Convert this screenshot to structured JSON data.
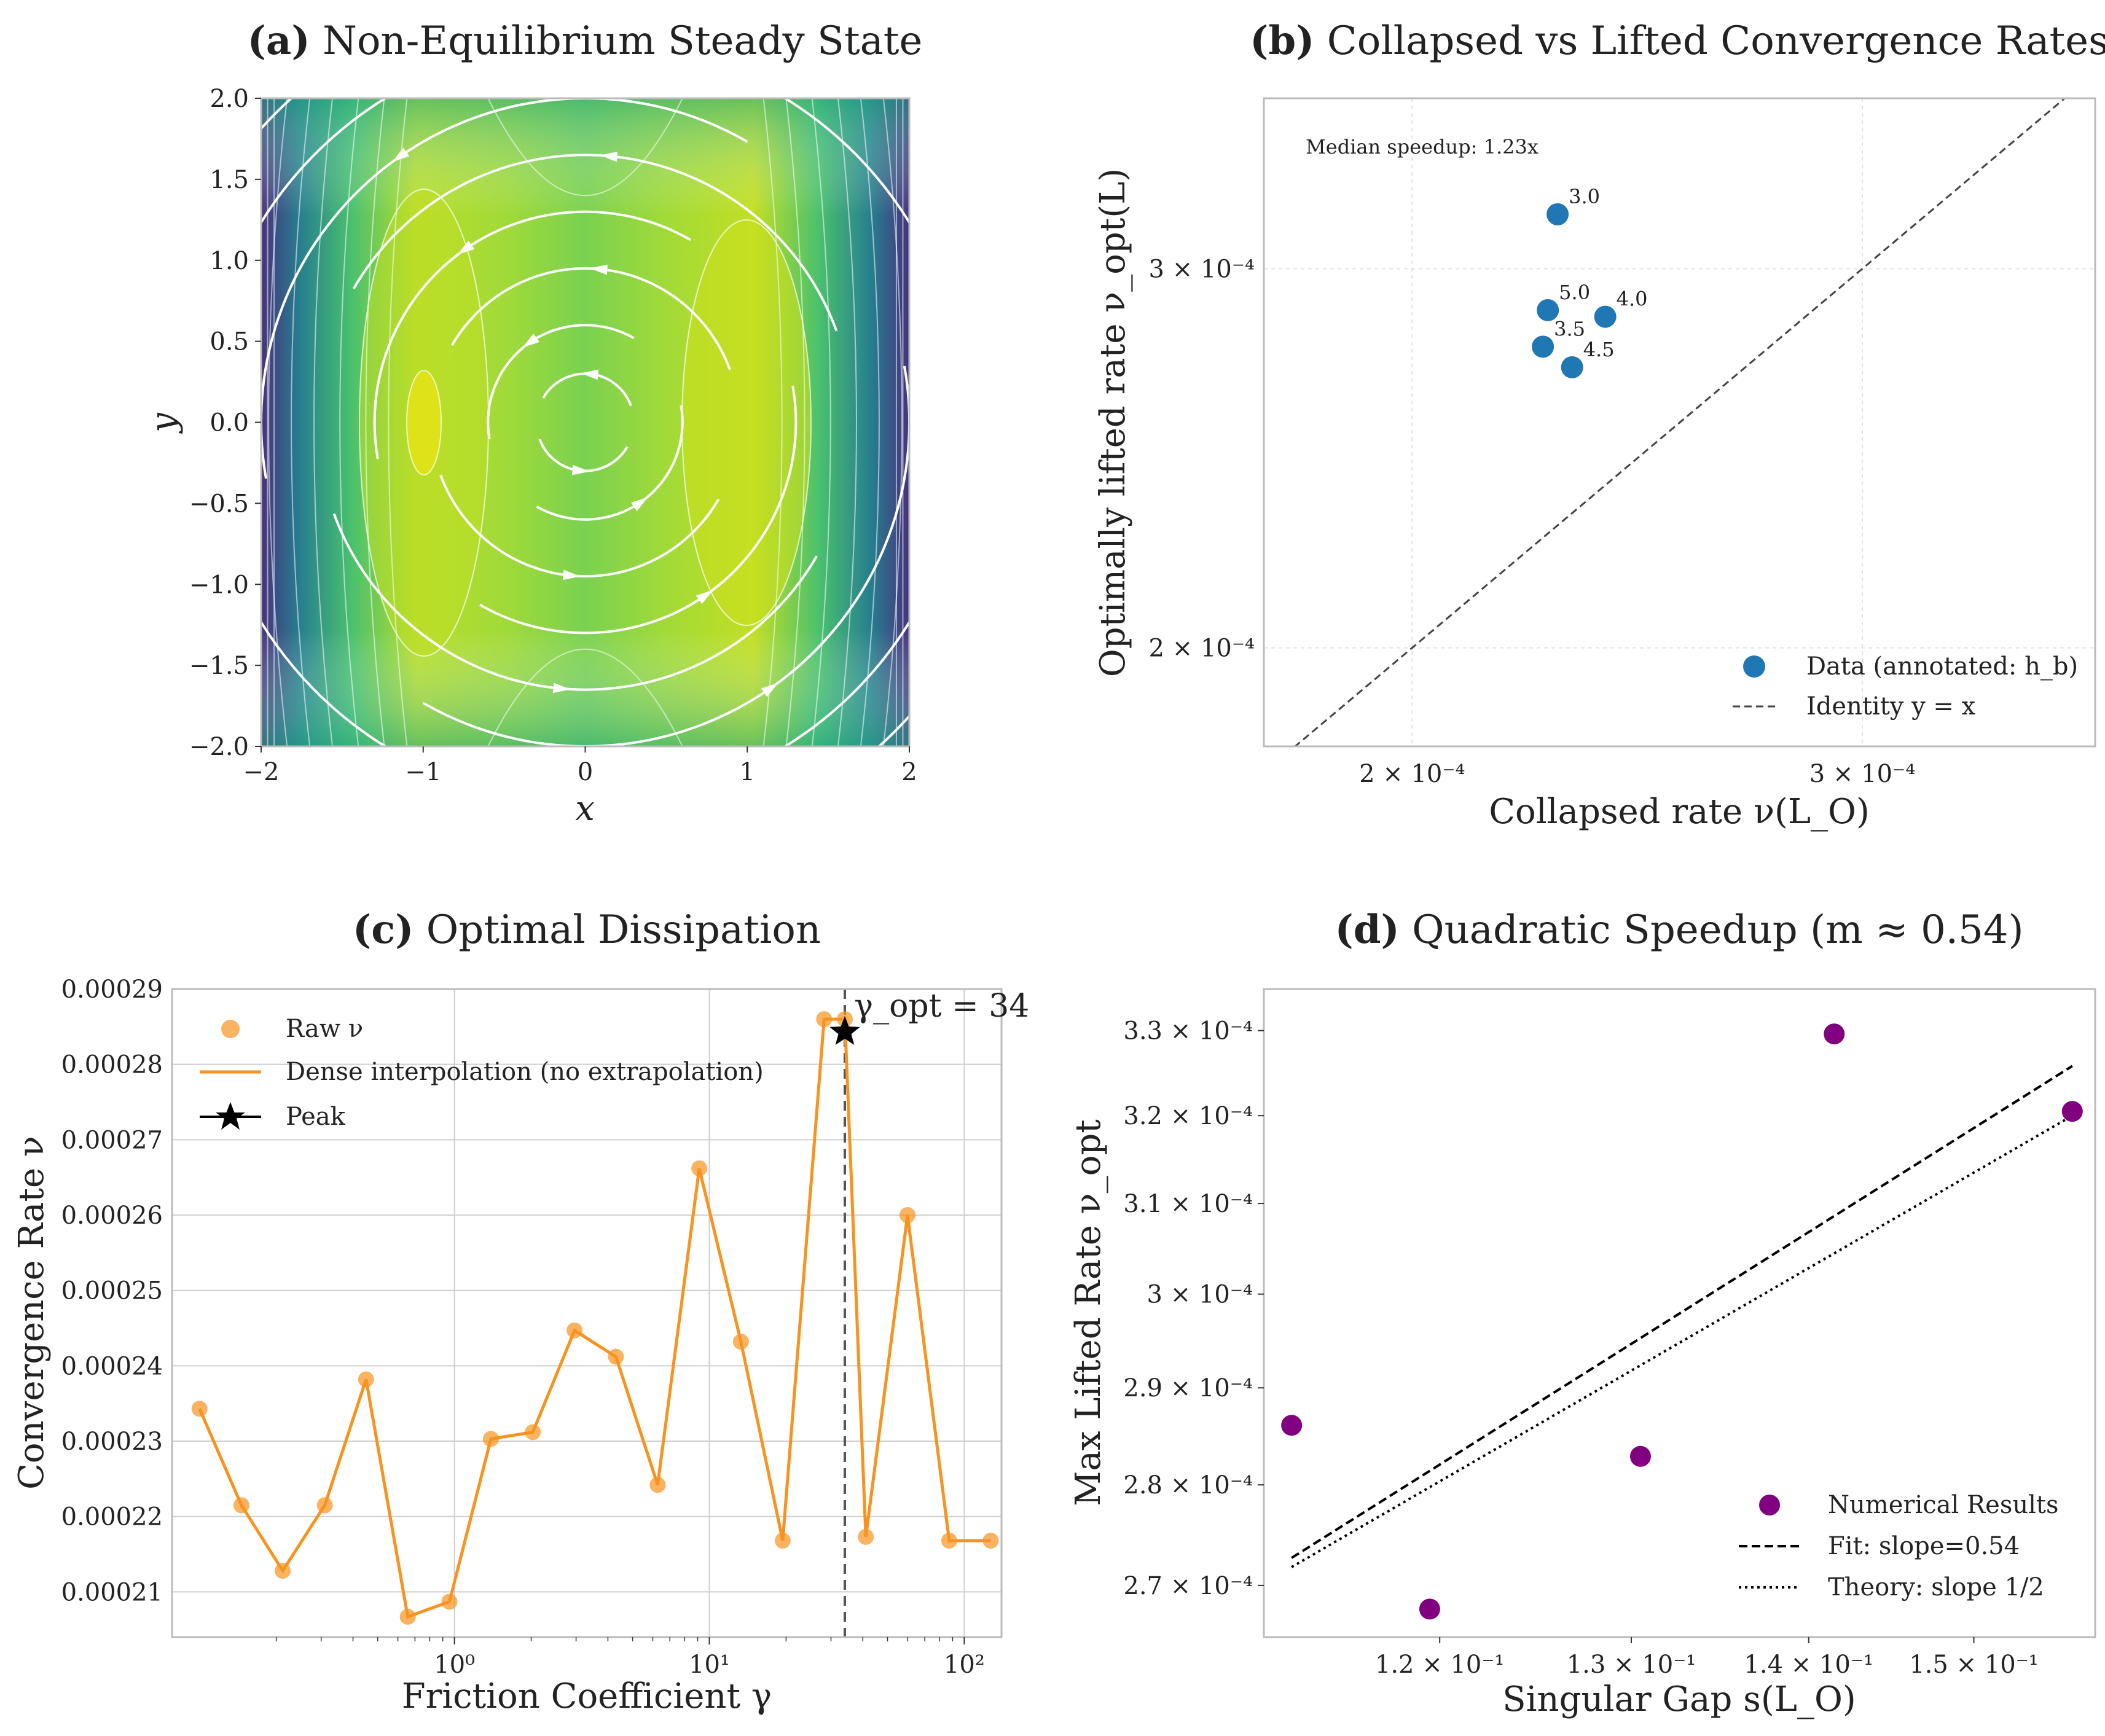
{
  "panels": {
    "a": {
      "title_bold": "(a)",
      "title": "Non-Equilibrium Steady State",
      "xlabel": "x",
      "ylabel": "y",
      "xticks": [
        "−2",
        "−1",
        "0",
        "1",
        "2"
      ],
      "yticks": [
        "−2.0",
        "−1.5",
        "−1.0",
        "−0.5",
        "0.0",
        "0.5",
        "1.0",
        "1.5",
        "2.0"
      ]
    },
    "b": {
      "title_bold": "(b)",
      "title": "Collapsed vs Lifted Convergence Rates",
      "xlabel": "Collapsed rate ν(L_O)",
      "ylabel": "Optimally lifted rate ν_opt(L)",
      "annotation": "Median speedup: 1.23x",
      "xticks": [
        "2 × 10⁻⁴",
        "3 × 10⁻⁴"
      ],
      "yticks": [
        "2 × 10⁻⁴",
        "3 × 10⁻⁴"
      ],
      "legend": [
        "Data (annotated: h_b)",
        "Identity y = x"
      ]
    },
    "c": {
      "title_bold": "(c)",
      "title": "Optimal Dissipation",
      "xlabel": "Friction Coefficient γ",
      "ylabel": "Convergence Rate ν",
      "annotation": "γ_opt = 34",
      "yticks": [
        "0.00021",
        "0.00022",
        "0.00023",
        "0.00024",
        "0.00025",
        "0.00026",
        "0.00027",
        "0.00028",
        "0.00029"
      ],
      "xticks": [
        "10⁰",
        "10¹",
        "10²"
      ],
      "legend": [
        "Raw ν",
        "Dense interpolation (no extrapolation)",
        "Peak"
      ]
    },
    "d": {
      "title_bold": "(d)",
      "title": "Quadratic Speedup (m ≈ 0.54)",
      "xlabel": "Singular Gap s(L_O)",
      "ylabel": "Max Lifted Rate ν_opt",
      "xticks": [
        "1.2 × 10⁻¹",
        "1.3 × 10⁻¹",
        "1.4 × 10⁻¹",
        "1.5 × 10⁻¹"
      ],
      "yticks": [
        "2.7 × 10⁻⁴",
        "2.8 × 10⁻⁴",
        "2.9 × 10⁻⁴",
        "3 × 10⁻⁴",
        "3.1 × 10⁻⁴",
        "3.2 × 10⁻⁴",
        "3.3 × 10⁻⁴"
      ],
      "legend": [
        "Numerical Results",
        "Fit: slope=0.54",
        "Theory: slope 1/2"
      ]
    }
  },
  "colors": {
    "blue": "#1f77b4",
    "orange": "#f7931e",
    "purple": "#800080",
    "grid": "#cfcfcf"
  },
  "chart_data": [
    {
      "type": "heatmap",
      "panel": "a",
      "xlim": [
        -2,
        2
      ],
      "ylim": [
        -2,
        2
      ],
      "colormap": "viridis",
      "streamlines": "rotational"
    },
    {
      "type": "scatter",
      "panel": "b",
      "scale": "log",
      "xlim": [
        0.000175,
        0.00037
      ],
      "ylim": [
        0.00018,
        0.00036
      ],
      "points": [
        {
          "x": 0.000228,
          "y": 0.000318,
          "label": "3.0"
        },
        {
          "x": 0.000226,
          "y": 0.000287,
          "label": "5.0"
        },
        {
          "x": 0.000238,
          "y": 0.000285,
          "label": "4.0"
        },
        {
          "x": 0.000225,
          "y": 0.000276,
          "label": "3.5"
        },
        {
          "x": 0.000231,
          "y": 0.00027,
          "label": "4.5"
        }
      ],
      "identity_line": true
    },
    {
      "type": "line",
      "panel": "c",
      "xscale": "log",
      "ylim": [
        0.000204,
        0.00029
      ],
      "gamma": [
        0.1,
        0.146,
        0.212,
        0.31,
        0.45,
        0.656,
        0.956,
        1.39,
        2.03,
        2.96,
        4.3,
        6.27,
        9.13,
        13.3,
        19.4,
        28.2,
        34,
        41.1,
        59.9,
        87.3,
        127
      ],
      "values": [
        0.0002343,
        0.0002215,
        0.0002128,
        0.0002215,
        0.0002382,
        0.0002067,
        0.0002087,
        0.0002303,
        0.0002312,
        0.0002447,
        0.0002412,
        0.0002242,
        0.0002662,
        0.0002432,
        0.0002168,
        0.000286,
        0.000286,
        0.0002173,
        0.00026,
        0.0002168,
        0.0002168
      ],
      "peak": {
        "x": 34,
        "y": 0.0002843
      }
    },
    {
      "type": "scatter",
      "panel": "d",
      "scale": "log",
      "xlim": [
        0.1115,
        0.1578
      ],
      "ylim": [
        0.000265,
        0.000335
      ],
      "points": [
        {
          "x": 0.1128,
          "y": 0.0002861
        },
        {
          "x": 0.1195,
          "y": 0.0002677
        },
        {
          "x": 0.1305,
          "y": 0.0002829
        },
        {
          "x": 0.1415,
          "y": 0.0003296
        },
        {
          "x": 0.1563,
          "y": 0.0003205
        }
      ],
      "fit": {
        "slope": 0.54,
        "x": [
          0.1128,
          0.1563
        ],
        "y": [
          0.0002727,
          0.0003258
        ]
      },
      "theory": {
        "slope": 0.5,
        "x": [
          0.1128,
          0.1563
        ],
        "y": [
          0.0002718,
          0.00032
        ]
      }
    }
  ]
}
